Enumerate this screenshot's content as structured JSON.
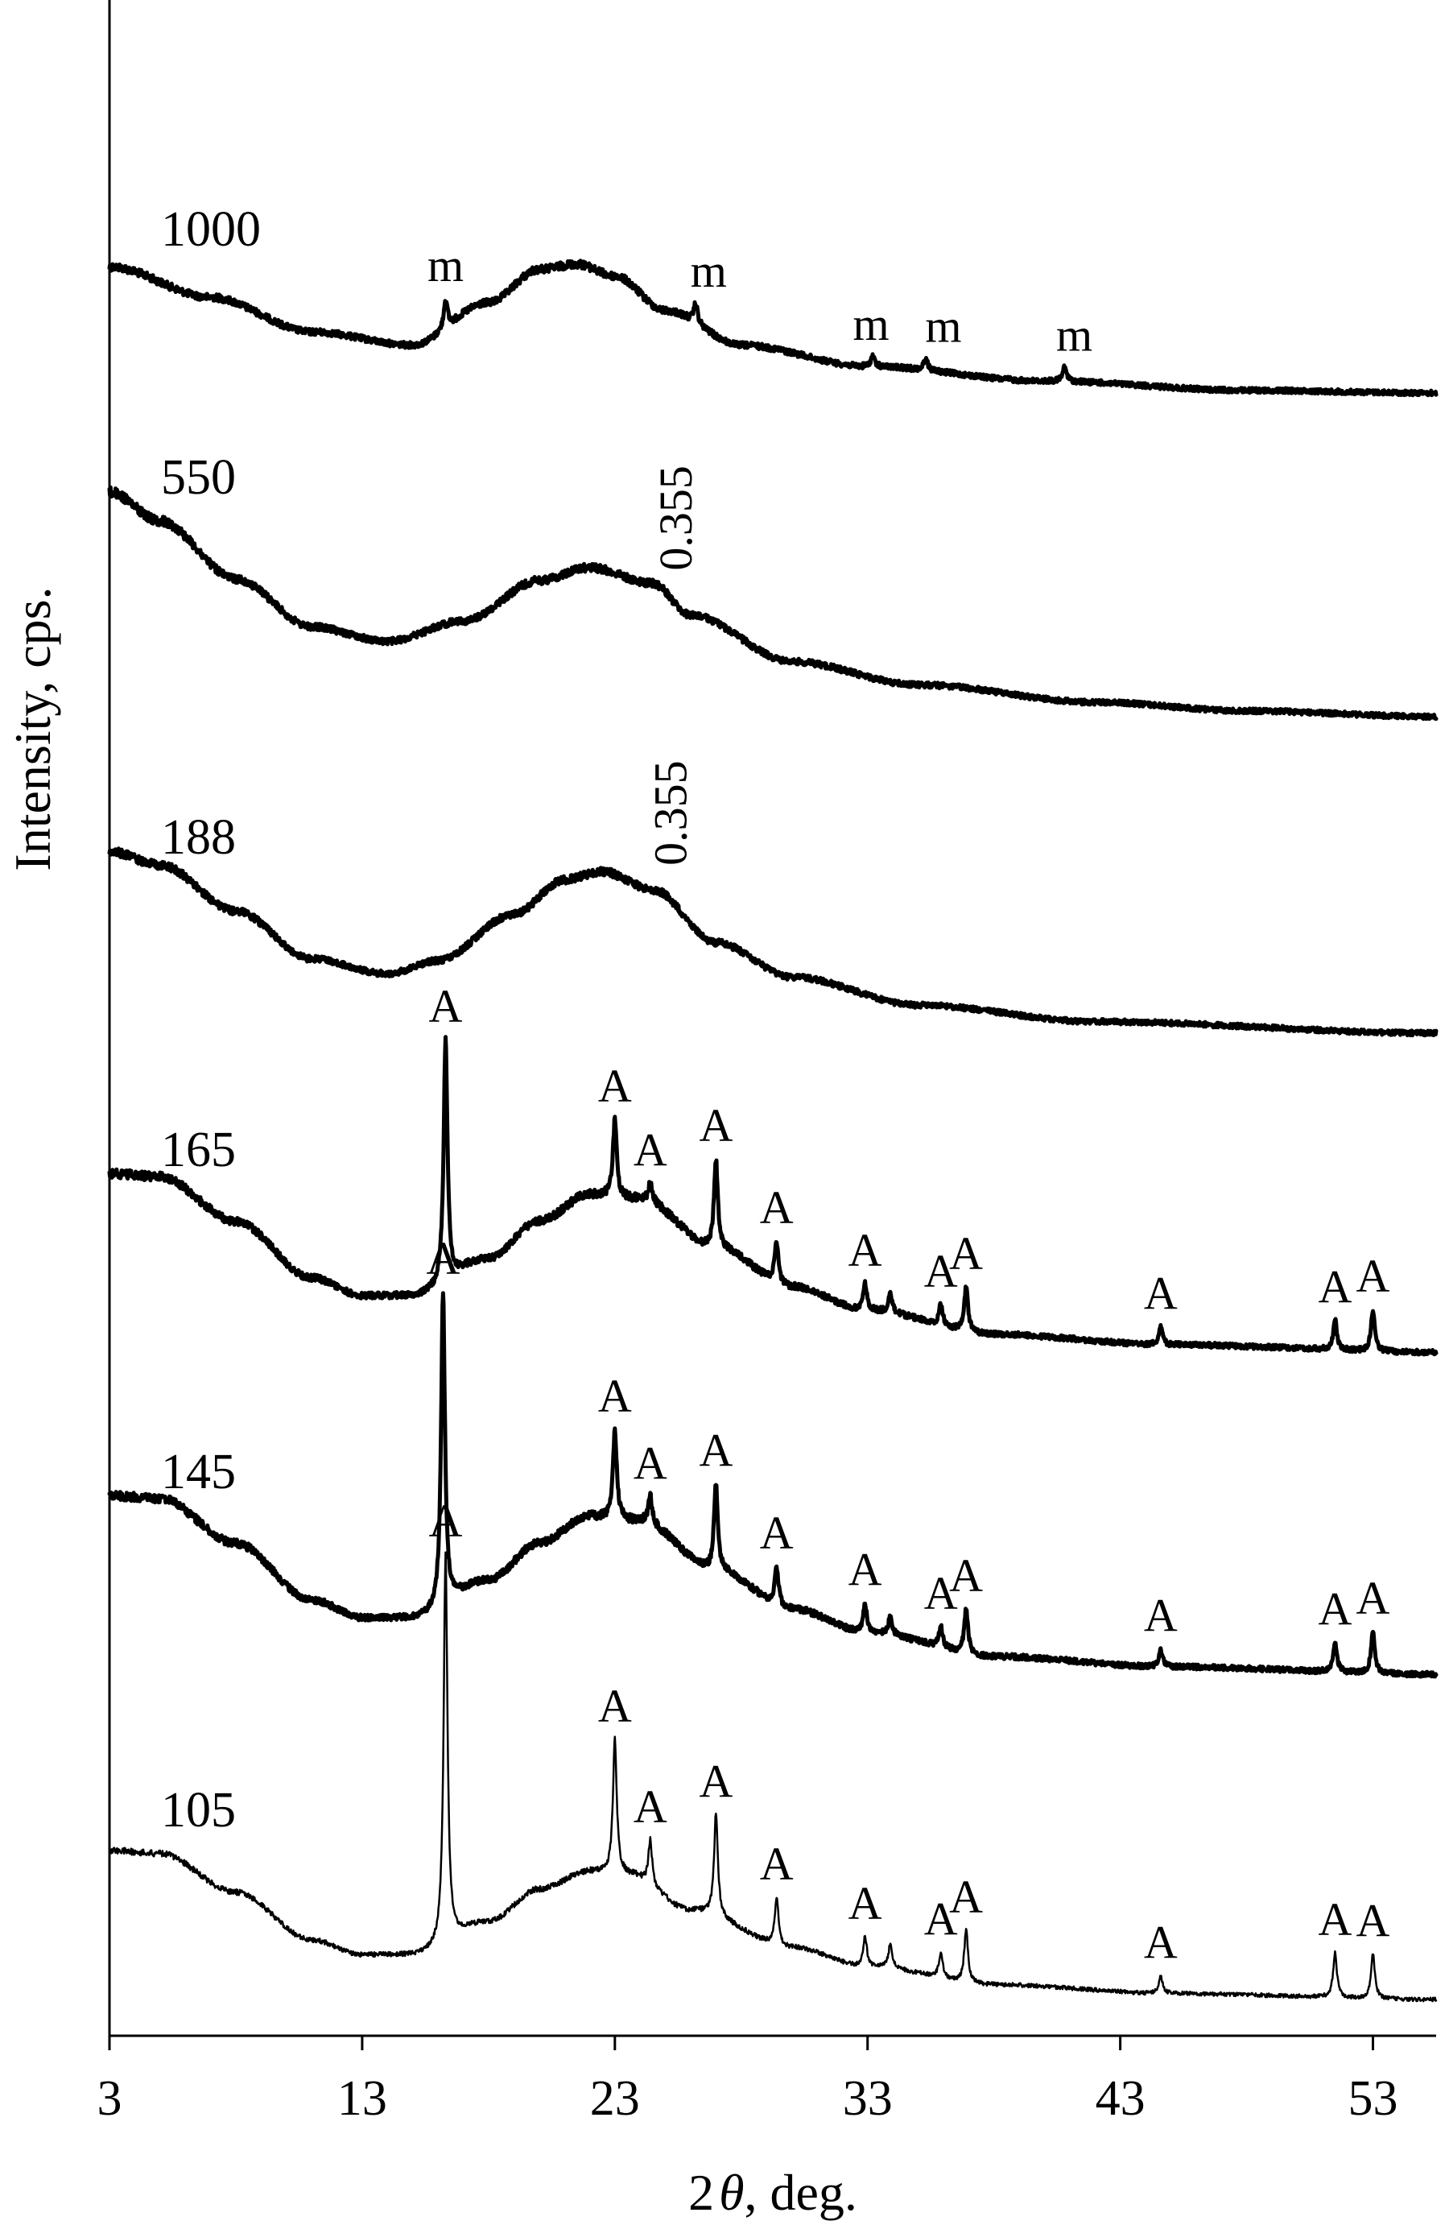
{
  "chart_data": {
    "type": "line",
    "xlabel_prefix": "2",
    "xlabel_symbol": "θ",
    "xlabel_suffix": ", deg.",
    "ylabel": "Intensity, cps.",
    "xlim": [
      3,
      55.5
    ],
    "x_ticks": [
      3,
      13,
      23,
      33,
      43,
      53
    ],
    "y_tick_labels": false,
    "grid": false,
    "legend": "none",
    "line_color": "#000000",
    "series": [
      {
        "name": "1000",
        "baseline": 0,
        "values": [
          [
            3,
            0.95
          ],
          [
            7,
            0.72
          ],
          [
            11,
            0.46
          ],
          [
            15,
            0.36
          ],
          [
            18,
            0.68
          ],
          [
            20,
            0.93
          ],
          [
            21.5,
            0.97
          ],
          [
            23,
            0.88
          ],
          [
            25,
            0.62
          ],
          [
            28,
            0.36
          ],
          [
            33,
            0.2
          ],
          [
            40,
            0.09
          ],
          [
            48,
            0.02
          ],
          [
            55.5,
            0.0
          ]
        ],
        "peaks": [
          {
            "x": 16.3,
            "h": 0.22,
            "label": "m"
          },
          {
            "x": 26.2,
            "h": 0.15,
            "label": "m"
          },
          {
            "x": 33.2,
            "h": 0.08,
            "label": "m"
          },
          {
            "x": 35.3,
            "h": 0.09,
            "label": "m"
          },
          {
            "x": 40.8,
            "h": 0.11,
            "label": "m"
          }
        ]
      },
      {
        "name": "550",
        "baseline": 0,
        "values": [
          [
            3,
            1.55
          ],
          [
            5,
            1.35
          ],
          [
            8,
            0.95
          ],
          [
            11,
            0.62
          ],
          [
            14,
            0.52
          ],
          [
            17,
            0.66
          ],
          [
            20,
            0.94
          ],
          [
            22,
            1.03
          ],
          [
            24.5,
            0.92
          ],
          [
            26,
            0.7
          ],
          [
            30,
            0.38
          ],
          [
            35,
            0.22
          ],
          [
            42,
            0.1
          ],
          [
            48,
            0.04
          ],
          [
            55.5,
            0.0
          ]
        ],
        "peaks": [],
        "annotation": {
          "x": 25.2,
          "text": "0.355"
        }
      },
      {
        "name": "188",
        "baseline": 0,
        "values": [
          [
            3,
            1.1
          ],
          [
            5,
            1.02
          ],
          [
            8,
            0.74
          ],
          [
            11,
            0.45
          ],
          [
            14,
            0.36
          ],
          [
            16,
            0.44
          ],
          [
            19,
            0.72
          ],
          [
            21,
            0.93
          ],
          [
            22.5,
            0.98
          ],
          [
            24.5,
            0.87
          ],
          [
            27,
            0.55
          ],
          [
            30,
            0.34
          ],
          [
            35,
            0.17
          ],
          [
            42,
            0.07
          ],
          [
            55.5,
            0.0
          ]
        ],
        "peaks": [],
        "annotation": {
          "x": 25.0,
          "text": "0.355"
        }
      },
      {
        "name": "165",
        "baseline": 0,
        "values": [
          [
            3,
            1.22
          ],
          [
            5,
            1.2
          ],
          [
            8,
            0.9
          ],
          [
            11,
            0.52
          ],
          [
            13,
            0.4
          ],
          [
            15,
            0.4
          ],
          [
            18,
            0.65
          ],
          [
            20,
            0.9
          ],
          [
            22,
            1.08
          ],
          [
            24,
            1.05
          ],
          [
            27,
            0.72
          ],
          [
            30,
            0.46
          ],
          [
            33,
            0.3
          ],
          [
            38,
            0.14
          ],
          [
            45,
            0.07
          ],
          [
            55.5,
            0.02
          ]
        ],
        "peaks": [
          {
            "x": 16.3,
            "h": 1.62,
            "label": "A"
          },
          {
            "x": 23.0,
            "h": 0.52,
            "label": "A"
          },
          {
            "x": 24.4,
            "h": 0.12,
            "label": "A"
          },
          {
            "x": 27.0,
            "h": 0.6,
            "label": "A"
          },
          {
            "x": 29.4,
            "h": 0.28,
            "label": "A"
          },
          {
            "x": 32.9,
            "h": 0.18,
            "label": "A"
          },
          {
            "x": 33.9,
            "h": 0.12,
            "label": ""
          },
          {
            "x": 35.9,
            "h": 0.14,
            "label": "A"
          },
          {
            "x": 36.9,
            "h": 0.3,
            "label": "A"
          },
          {
            "x": 44.6,
            "h": 0.12,
            "label": "A"
          },
          {
            "x": 51.5,
            "h": 0.2,
            "label": "A"
          },
          {
            "x": 53.0,
            "h": 0.28,
            "label": "A"
          }
        ]
      },
      {
        "name": "145",
        "baseline": 0,
        "values": [
          [
            3,
            1.22
          ],
          [
            5,
            1.2
          ],
          [
            8,
            0.9
          ],
          [
            11,
            0.52
          ],
          [
            13,
            0.4
          ],
          [
            15,
            0.4
          ],
          [
            18,
            0.65
          ],
          [
            20,
            0.9
          ],
          [
            22,
            1.08
          ],
          [
            24,
            1.05
          ],
          [
            27,
            0.72
          ],
          [
            30,
            0.46
          ],
          [
            33,
            0.3
          ],
          [
            38,
            0.14
          ],
          [
            45,
            0.07
          ],
          [
            55.5,
            0.02
          ]
        ],
        "peaks": [
          {
            "x": 16.2,
            "h": 2.1,
            "label": "A"
          },
          {
            "x": 23.0,
            "h": 0.6,
            "label": "A"
          },
          {
            "x": 24.4,
            "h": 0.18,
            "label": "A"
          },
          {
            "x": 27.0,
            "h": 0.58,
            "label": "A"
          },
          {
            "x": 29.4,
            "h": 0.26,
            "label": "A"
          },
          {
            "x": 32.9,
            "h": 0.2,
            "label": "A"
          },
          {
            "x": 33.9,
            "h": 0.12,
            "label": ""
          },
          {
            "x": 35.9,
            "h": 0.14,
            "label": "A"
          },
          {
            "x": 36.9,
            "h": 0.3,
            "label": "A"
          },
          {
            "x": 44.6,
            "h": 0.12,
            "label": "A"
          },
          {
            "x": 51.5,
            "h": 0.2,
            "label": "A"
          },
          {
            "x": 53.0,
            "h": 0.28,
            "label": "A"
          }
        ]
      },
      {
        "name": "105",
        "baseline": 0,
        "values": [
          [
            3,
            1.0
          ],
          [
            5,
            0.98
          ],
          [
            8,
            0.72
          ],
          [
            11,
            0.4
          ],
          [
            13,
            0.3
          ],
          [
            15,
            0.3
          ],
          [
            18,
            0.52
          ],
          [
            20,
            0.74
          ],
          [
            22,
            0.86
          ],
          [
            23.5,
            0.84
          ],
          [
            26,
            0.6
          ],
          [
            30,
            0.35
          ],
          [
            33,
            0.22
          ],
          [
            38,
            0.1
          ],
          [
            45,
            0.04
          ],
          [
            55.5,
            0.0
          ]
        ],
        "peaks": [
          {
            "x": 16.3,
            "h": 2.6,
            "label": "A"
          },
          {
            "x": 23.0,
            "h": 0.9,
            "label": "A"
          },
          {
            "x": 24.4,
            "h": 0.3,
            "label": "A"
          },
          {
            "x": 27.0,
            "h": 0.68,
            "label": "A"
          },
          {
            "x": 29.4,
            "h": 0.32,
            "label": "A"
          },
          {
            "x": 32.9,
            "h": 0.2,
            "label": "A"
          },
          {
            "x": 33.9,
            "h": 0.16,
            "label": ""
          },
          {
            "x": 35.9,
            "h": 0.17,
            "label": "A"
          },
          {
            "x": 36.9,
            "h": 0.35,
            "label": "A"
          },
          {
            "x": 44.6,
            "h": 0.12,
            "label": "A"
          },
          {
            "x": 51.5,
            "h": 0.3,
            "label": "A"
          },
          {
            "x": 53.0,
            "h": 0.3,
            "label": "A"
          }
        ]
      }
    ]
  }
}
